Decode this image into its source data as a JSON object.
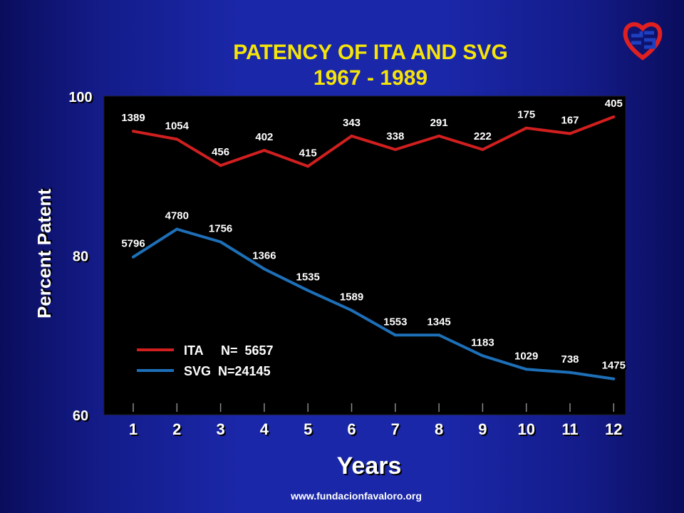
{
  "title": "PATENCY OF ITA AND SVG",
  "subtitle": "1967 - 1989",
  "footer_url": "www.fundacionfavaloro.org",
  "colors": {
    "background": "#1a27a8",
    "title": "#f5e40a",
    "plot_bg": "#000000",
    "ita": "#d11f1f",
    "svg": "#1d6fb8",
    "text": "#ffffff"
  },
  "icons": {
    "logo": "fundacion-favaloro-heart-logo"
  },
  "chart_data": {
    "type": "line",
    "title": "PATENCY OF ITA AND SVG",
    "subtitle": "1967 - 1989",
    "xlabel": "Years",
    "ylabel": "Percent Patent",
    "x": [
      1,
      2,
      3,
      4,
      5,
      6,
      7,
      8,
      9,
      10,
      11,
      12
    ],
    "x_tick_labels": [
      "1",
      "2",
      "3",
      "4",
      "5",
      "6",
      "7",
      "8",
      "9",
      "10",
      "11",
      "12"
    ],
    "y_tick_labels": [
      "100",
      "80",
      "60"
    ],
    "yticks": [
      100,
      80,
      60
    ],
    "ylim": [
      60,
      100
    ],
    "grid": false,
    "legend_position": "bottom-left",
    "series": [
      {
        "name": "ITA",
        "legend_label": "ITA     N=  5657",
        "color": "#d11f1f",
        "values": [
          95.6,
          94.6,
          91.3,
          93.2,
          91.2,
          95.0,
          93.3,
          95.0,
          93.3,
          96.0,
          95.3,
          97.4
        ],
        "data_labels": [
          "1389",
          "1054",
          "456",
          "402",
          "415",
          "343",
          "338",
          "291",
          "222",
          "175",
          "167",
          "405"
        ]
      },
      {
        "name": "SVG",
        "legend_label": "SVG  N=24145",
        "color": "#1d6fb8",
        "values": [
          79.8,
          83.3,
          81.7,
          78.3,
          75.6,
          73.1,
          70.0,
          70.0,
          67.4,
          65.7,
          65.3,
          64.5
        ],
        "data_labels": [
          "5796",
          "4780",
          "1756",
          "1366",
          "1535",
          "1589",
          "1553",
          "1345",
          "1183",
          "1029",
          "738",
          "1475"
        ]
      }
    ]
  }
}
